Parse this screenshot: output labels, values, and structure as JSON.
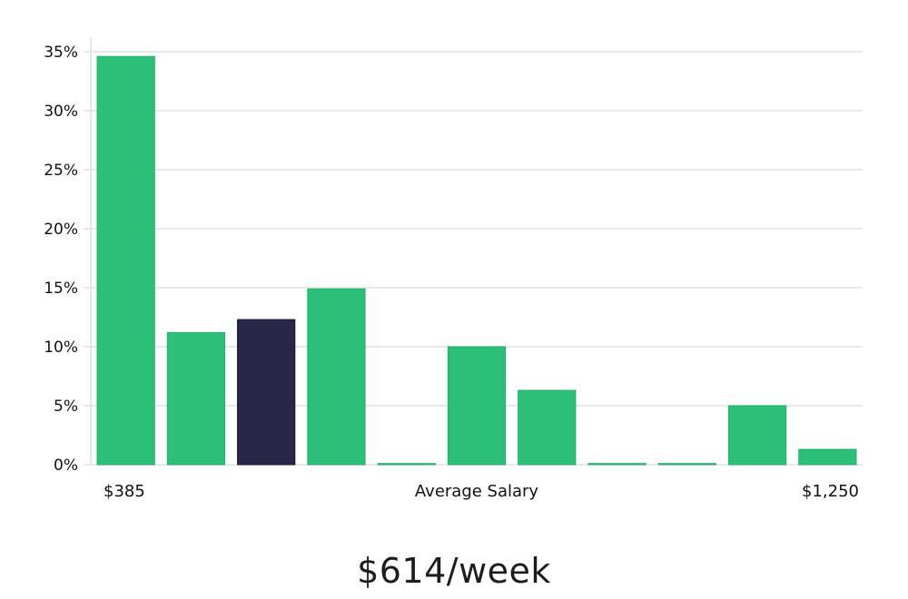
{
  "headline": "$614/week",
  "colors": {
    "bar": "#2bbf78",
    "highlight": "#29264a",
    "grid": "#e2e2e2",
    "axis": "#cfcfcf"
  },
  "chart_data": {
    "type": "bar",
    "title": "",
    "xlabel": "Average Salary",
    "x_range_labels": {
      "min": "$385",
      "max": "$1,250"
    },
    "ylabel": "",
    "ylim": [
      0,
      35
    ],
    "yticks": [
      0,
      5,
      10,
      15,
      20,
      25,
      30,
      35
    ],
    "ytick_format": "percent",
    "grid": true,
    "highlight_index": 2,
    "values": [
      34.6,
      11.2,
      12.3,
      14.9,
      0.1,
      10.0,
      6.3,
      0.1,
      0.1,
      5.0,
      1.3
    ]
  }
}
